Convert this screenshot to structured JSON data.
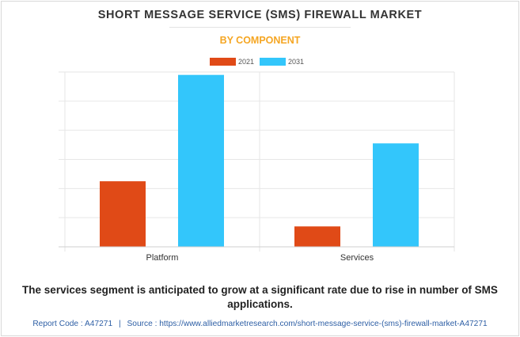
{
  "title": "SHORT MESSAGE SERVICE (SMS) FIREWALL MARKET",
  "subtitle": "BY COMPONENT",
  "caption": "The services segment is anticipated to grow at a significant rate due to rise in number of SMS applications.",
  "footer": {
    "report_code": "Report Code : A47271",
    "separator": "|",
    "source": "Source : https://www.alliedmarketresearch.com/short-message-service-(sms)-firewall-market-A47271"
  },
  "colors": {
    "series_2021": "#e04a17",
    "series_2031": "#33c6fb",
    "subtitle": "#f5a623",
    "grid": "#e6e6e6"
  },
  "chart_data": {
    "type": "bar",
    "title": "SHORT MESSAGE SERVICE (SMS) FIREWALL MARKET",
    "subtitle": "BY COMPONENT",
    "categories": [
      "Platform",
      "Services"
    ],
    "series": [
      {
        "name": "2021",
        "values": [
          22.5,
          7
        ]
      },
      {
        "name": "2031",
        "values": [
          59,
          35.5
        ]
      }
    ],
    "ylim": [
      0,
      60
    ],
    "y_tick_labels_shown": false,
    "grid": true,
    "legend_position": "top-center"
  }
}
